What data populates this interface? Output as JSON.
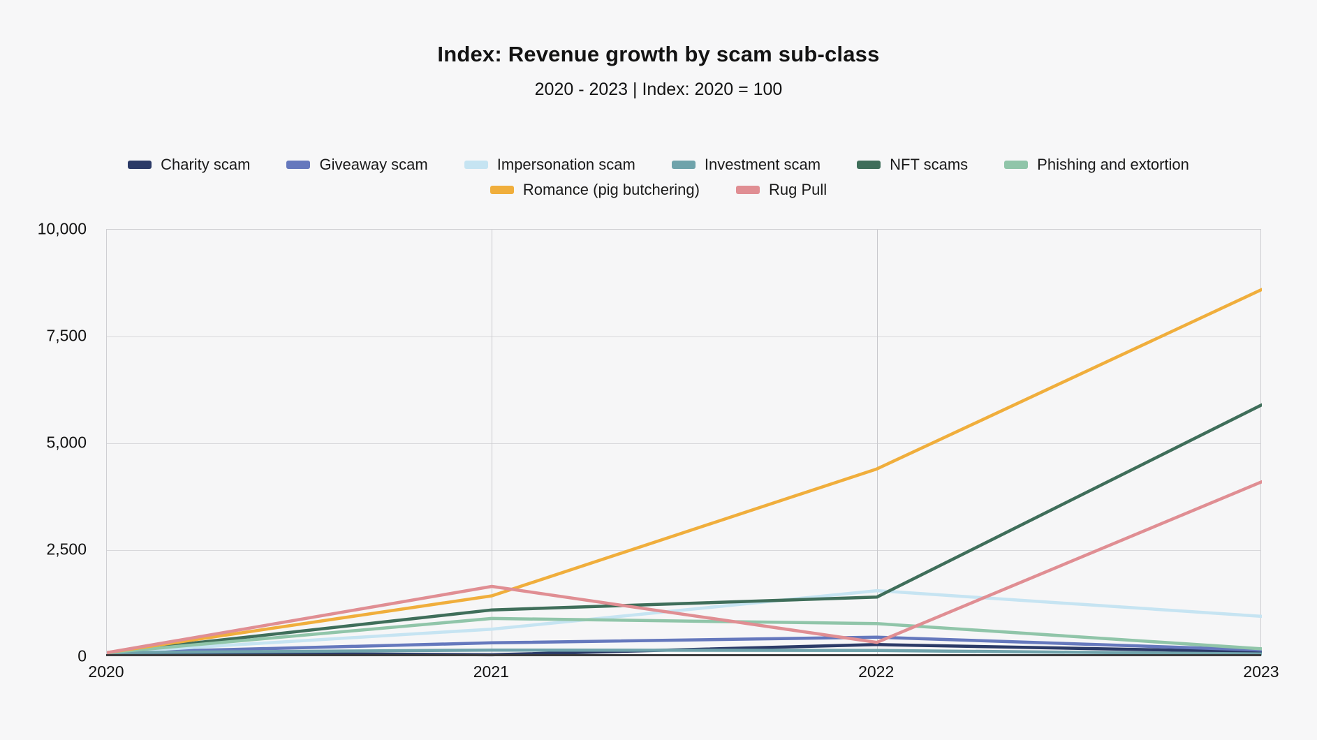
{
  "header": {
    "title": "Index: Revenue growth by scam sub-class",
    "subtitle": "2020 - 2023 | Index: 2020 = 100"
  },
  "chart_data": {
    "type": "line",
    "title": "Index: Revenue growth by scam sub-class",
    "subtitle": "2020 - 2023 | Index: 2020 = 100",
    "x": [
      "2020",
      "2021",
      "2022",
      "2023"
    ],
    "xlabel": "",
    "ylabel": "",
    "ylim": [
      0,
      10000
    ],
    "grid": true,
    "legend_position": "top-center",
    "y_ticks": [
      {
        "value": 0,
        "label": "0"
      },
      {
        "value": 2500,
        "label": "2,500"
      },
      {
        "value": 5000,
        "label": "5,000"
      },
      {
        "value": 7500,
        "label": "7,500"
      },
      {
        "value": 10000,
        "label": "10,000"
      }
    ],
    "vertical_gridline_x": [
      "2021",
      "2022"
    ],
    "series": [
      {
        "id": "charity-scam",
        "name": "Charity scam",
        "color": "#2b3a67",
        "legend_row": 1,
        "values": [
          100,
          50,
          290,
          120
        ]
      },
      {
        "id": "giveaway-scam",
        "name": "Giveaway scam",
        "color": "#6578bd",
        "legend_row": 1,
        "values": [
          100,
          330,
          460,
          160
        ]
      },
      {
        "id": "impersonation-scam",
        "name": "Impersonation scam",
        "color": "#c6e4f2",
        "legend_row": 1,
        "values": [
          100,
          650,
          1550,
          950
        ]
      },
      {
        "id": "investment-scam",
        "name": "Investment scam",
        "color": "#6fa3ab",
        "legend_row": 1,
        "values": [
          100,
          160,
          150,
          70
        ]
      },
      {
        "id": "nft-scams",
        "name": "NFT scams",
        "color": "#3f6e5a",
        "legend_row": 1,
        "values": [
          100,
          1100,
          1400,
          5900
        ]
      },
      {
        "id": "phishing-and-extortion",
        "name": "Phishing and extortion",
        "color": "#90c5a9",
        "legend_row": 1,
        "values": [
          100,
          900,
          780,
          190
        ]
      },
      {
        "id": "romance-pig-butchering",
        "name": "Romance (pig butchering)",
        "color": "#f0ae3c",
        "legend_row": 2,
        "values": [
          100,
          1430,
          4400,
          8600
        ]
      },
      {
        "id": "rug-pull",
        "name": "Rug Pull",
        "color": "#e08e93",
        "legend_row": 2,
        "values": [
          100,
          1650,
          340,
          4100
        ]
      }
    ]
  }
}
